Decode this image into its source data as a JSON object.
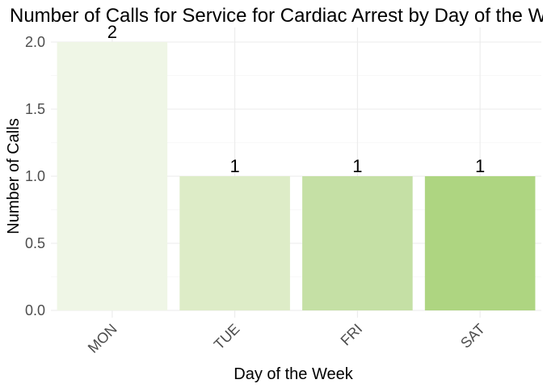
{
  "chart_data": {
    "type": "bar",
    "title": "Number of Calls for Service for Cardiac Arrest by Day of the Week",
    "xlabel": "Day of the Week",
    "ylabel": "Number of Calls",
    "categories": [
      "MON",
      "TUE",
      "FRI",
      "SAT"
    ],
    "values": [
      2,
      1,
      1,
      1
    ],
    "data_labels": [
      "2",
      "1",
      "1",
      "1"
    ],
    "bar_colors": [
      "#eff6e6",
      "#ddecc7",
      "#c5e0a5",
      "#aed581"
    ],
    "ylim": [
      0,
      2.1
    ],
    "yticks": [
      0.0,
      0.5,
      1.0,
      1.5,
      2.0
    ],
    "ytick_labels": [
      "0.0",
      "0.5",
      "1.0",
      "1.5",
      "2.0"
    ],
    "grid": true,
    "legend": "none",
    "x_tick_rotation_deg": 45
  }
}
